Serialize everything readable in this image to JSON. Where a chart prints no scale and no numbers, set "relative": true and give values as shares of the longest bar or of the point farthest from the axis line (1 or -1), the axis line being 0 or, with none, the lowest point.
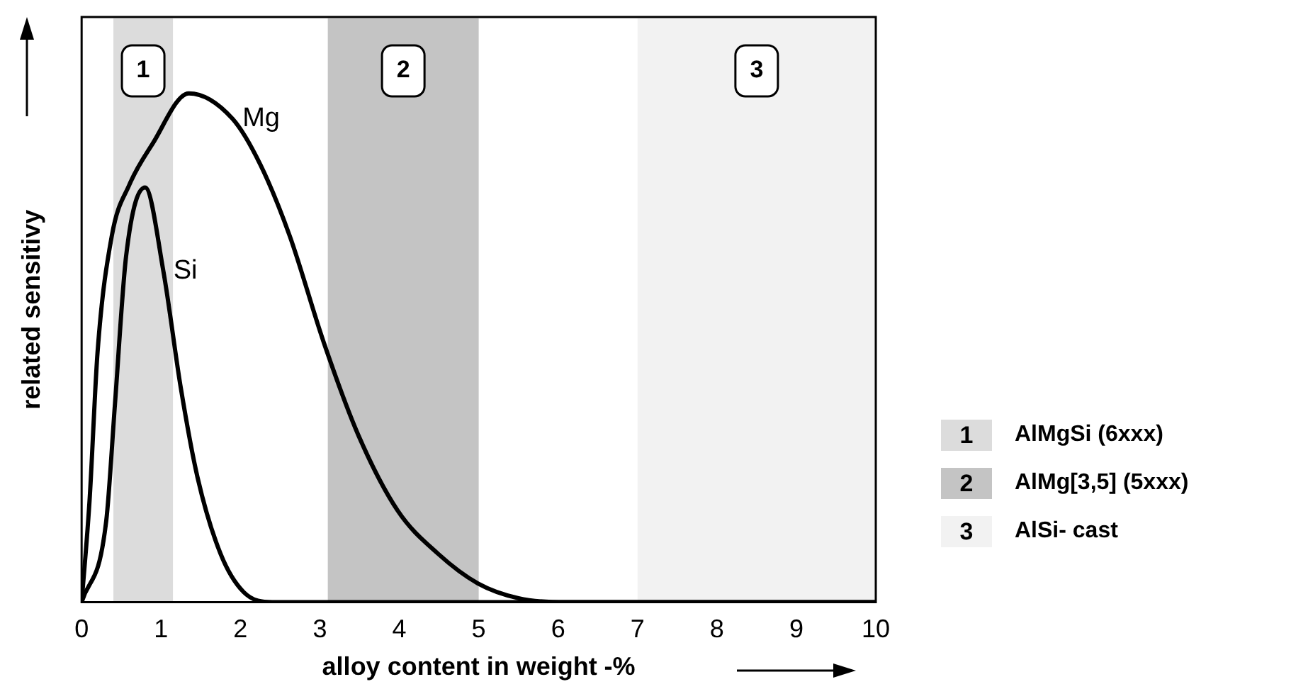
{
  "chart_data": {
    "type": "line",
    "xlabel": "alloy content in weight -%",
    "ylabel": "related sensitivy",
    "relative": true,
    "xlim": [
      0,
      10
    ],
    "xticks": [
      0,
      1,
      2,
      3,
      4,
      5,
      6,
      7,
      8,
      9,
      10
    ],
    "grid": false,
    "legend": false,
    "marker": "none",
    "line_style": "solid",
    "series": [
      {
        "name": "Mg",
        "color": "#000000",
        "x": [
          0,
          0.1,
          0.2,
          0.38,
          0.6,
          0.89,
          1.35,
          1.9,
          2.25,
          2.62,
          3.05,
          3.48,
          3.98,
          4.49,
          4.99,
          5.5,
          6.1,
          10
        ],
        "values": [
          0,
          0.2,
          0.49,
          0.72,
          0.82,
          0.9,
          1,
          0.95,
          0.86,
          0.72,
          0.51,
          0.33,
          0.18,
          0.095,
          0.037,
          0.008,
          0,
          0
        ]
      },
      {
        "name": "Si",
        "color": "#000000",
        "x": [
          0,
          0.31,
          0.42,
          0.56,
          0.8,
          1.03,
          1.25,
          1.46,
          1.75,
          2.04,
          2.4,
          10
        ],
        "values": [
          0,
          0.16,
          0.39,
          0.68,
          0.815,
          0.65,
          0.42,
          0.245,
          0.095,
          0.02,
          0,
          0
        ]
      }
    ],
    "bands": [
      {
        "axis": "x",
        "from": 0.4,
        "to": 1.15,
        "label": "1",
        "color": "#dcdcdc"
      },
      {
        "axis": "x",
        "from": 3.1,
        "to": 5,
        "label": "2",
        "color": "#c4c4c4"
      },
      {
        "axis": "x",
        "from": 7,
        "to": 10,
        "label": "3",
        "color": "#f2f2f2"
      }
    ],
    "annotations": [
      "AlMgSi (6xxx)",
      "AlMg[3,5] (5xxx)",
      "AlSi- cast"
    ]
  }
}
